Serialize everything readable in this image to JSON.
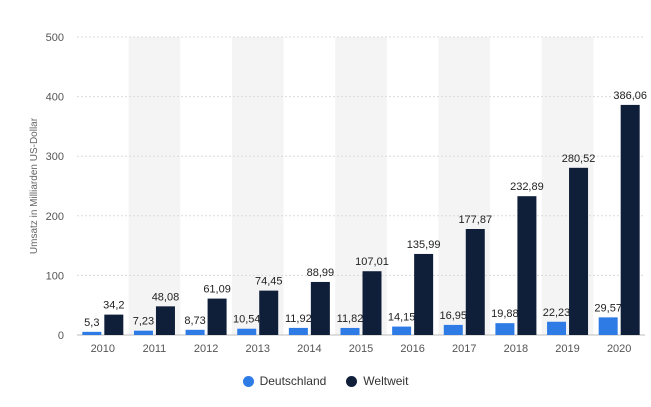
{
  "chart_data": {
    "type": "bar",
    "categories": [
      "2010",
      "2011",
      "2012",
      "2013",
      "2014",
      "2015",
      "2016",
      "2017",
      "2018",
      "2019",
      "2020"
    ],
    "series": [
      {
        "name": "Deutschland",
        "color": "#2E7BE6",
        "values": [
          5.3,
          7.23,
          8.73,
          10.54,
          11.92,
          11.82,
          14.15,
          16.95,
          19.88,
          22.23,
          29.57
        ],
        "labels": [
          "5,3",
          "7,23",
          "8,73",
          "10,54",
          "11,92",
          "11,82",
          "14,15",
          "16,95",
          "19,88",
          "22,23",
          "29,57"
        ]
      },
      {
        "name": "Weltweit",
        "color": "#0F1F3A",
        "values": [
          34.2,
          48.08,
          61.09,
          74.45,
          88.99,
          107.01,
          135.99,
          177.87,
          232.89,
          280.52,
          386.06
        ],
        "labels": [
          "34,2",
          "48,08",
          "61,09",
          "74,45",
          "88,99",
          "107,01",
          "135,99",
          "177,87",
          "232,89",
          "280,52",
          "386,06"
        ]
      }
    ],
    "ylabel": "Umsatz in Milliarden US-Dollar",
    "ylim": [
      0,
      500
    ],
    "yticks": [
      0,
      100,
      200,
      300,
      400,
      500
    ],
    "grid": true,
    "legend_position": "bottom-center"
  }
}
